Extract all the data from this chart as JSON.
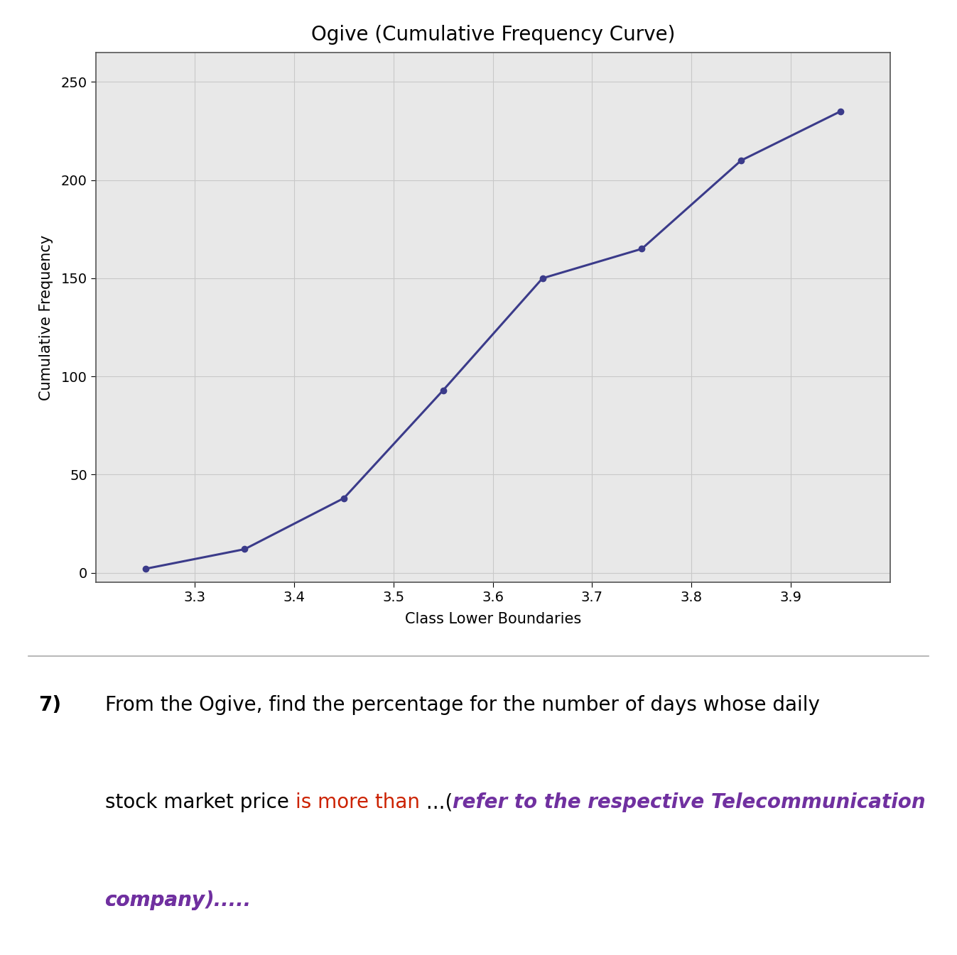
{
  "title": "Ogive (Cumulative Frequency Curve)",
  "xlabel": "Class Lower Boundaries",
  "ylabel": "Cumulative Frequency",
  "x_values": [
    3.25,
    3.35,
    3.45,
    3.55,
    3.65,
    3.75,
    3.85,
    3.95
  ],
  "y_values": [
    2,
    12,
    38,
    93,
    150,
    165,
    210,
    235
  ],
  "xlim": [
    3.2,
    4.0
  ],
  "ylim": [
    -5,
    265
  ],
  "yticks": [
    0,
    50,
    100,
    150,
    200,
    250
  ],
  "xticks": [
    3.3,
    3.4,
    3.5,
    3.6,
    3.7,
    3.8,
    3.9
  ],
  "line_color": "#3B3B8A",
  "marker_color": "#3B3B8A",
  "grid_color": "#c8c8c8",
  "chart_bg": "#e8e8e8",
  "title_fontsize": 20,
  "axis_label_fontsize": 15,
  "tick_fontsize": 14,
  "text_question_num": "7)",
  "text_line1": "From the Ogive, find the percentage for the number of days whose daily",
  "text_line2_part1": "stock market price ",
  "text_line2_part2": "is more than",
  "text_line2_part3": " ...(",
  "text_line2_part4": "refer to the respective Telecommunication",
  "text_line3_part1": "company",
  "text_line3_part2": ").....",
  "text_color_normal": "#000000",
  "text_color_red": "#cc2200",
  "text_color_purple": "#7030a0",
  "outer_bg": "#2a2a2a",
  "frame_bg": "#c8c8c8",
  "inner_bg": "#e0e0e0"
}
